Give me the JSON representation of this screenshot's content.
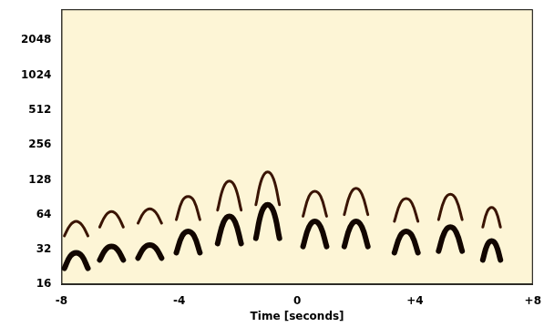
{
  "chart_data": {
    "type": "line",
    "x_label": "Time [seconds]",
    "x": [
      -7.9,
      -7.7,
      -7.5,
      -7.3,
      -7.1,
      -6.9,
      -6.7,
      -6.5,
      -6.3,
      -6.1,
      -5.9,
      -5.65,
      -5.4,
      -5.2,
      -5.0,
      -4.8,
      -4.6,
      -4.35,
      -4.1,
      -3.9,
      -3.7,
      -3.5,
      -3.3,
      -3.0,
      -2.7,
      -2.5,
      -2.3,
      -2.1,
      -1.9,
      -1.65,
      -1.4,
      -1.2,
      -1.0,
      -0.8,
      -0.6,
      -0.2,
      0.2,
      0.4,
      0.6,
      0.8,
      1.0,
      1.3,
      1.6,
      1.8,
      2.0,
      2.2,
      2.4,
      2.9,
      3.3,
      3.5,
      3.7,
      3.9,
      4.1,
      4.45,
      4.8,
      5.0,
      5.2,
      5.4,
      5.6,
      5.95,
      6.3,
      6.45,
      6.6,
      6.75,
      6.9
    ],
    "series": [
      {
        "color": "#120600",
        "values": [
          22,
          28,
          30,
          28,
          22,
          null,
          26,
          32,
          34,
          32,
          26,
          null,
          27,
          33,
          35,
          33,
          27,
          null,
          30,
          42,
          46,
          42,
          30,
          null,
          36,
          55,
          62,
          55,
          36,
          null,
          40,
          68,
          78,
          68,
          40,
          null,
          34,
          50,
          56,
          50,
          34,
          null,
          34,
          50,
          56,
          50,
          34,
          null,
          30,
          42,
          46,
          42,
          30,
          null,
          31,
          45,
          50,
          45,
          31,
          null,
          26,
          35,
          38,
          35,
          26
        ]
      },
      {
        "color": "#3a1403",
        "values": [
          42,
          52,
          56,
          52,
          42,
          null,
          50,
          63,
          68,
          63,
          50,
          null,
          54,
          67,
          72,
          67,
          54,
          null,
          58,
          84,
          92,
          84,
          58,
          null,
          70,
          110,
          125,
          110,
          70,
          null,
          78,
          130,
          150,
          130,
          78,
          null,
          62,
          92,
          102,
          92,
          62,
          null,
          64,
          96,
          108,
          96,
          64,
          null,
          56,
          80,
          88,
          80,
          56,
          null,
          58,
          86,
          96,
          86,
          58,
          null,
          50,
          68,
          74,
          68,
          50
        ]
      }
    ],
    "xlim": [
      -8,
      8
    ],
    "xticks": [
      -8,
      -4,
      0,
      {
        "value": 4,
        "label": "+4"
      },
      {
        "value": 8,
        "label": "+8"
      }
    ],
    "ylim": [
      16,
      3800
    ],
    "yticks": [
      16,
      32,
      64,
      128,
      256,
      512,
      1024,
      2048
    ],
    "log": "y",
    "grid": false
  }
}
